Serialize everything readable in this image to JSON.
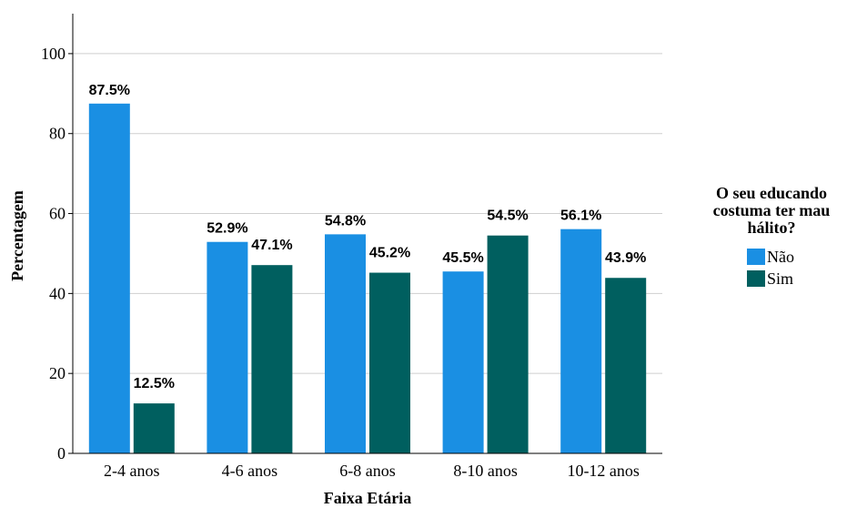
{
  "chart_data": {
    "type": "bar",
    "categories": [
      "2-4 anos",
      "4-6 anos",
      "6-8 anos",
      "8-10 anos",
      "10-12 anos"
    ],
    "series": [
      {
        "name": "Não",
        "values": [
          87.5,
          52.9,
          54.8,
          45.5,
          56.1
        ],
        "labels": [
          "87.5%",
          "52.9%",
          "54.8%",
          "45.5%",
          "56.1%"
        ],
        "color": "#1a8fe3"
      },
      {
        "name": "Sim",
        "values": [
          12.5,
          47.1,
          45.2,
          54.5,
          43.9
        ],
        "labels": [
          "12.5%",
          "47.1%",
          "45.2%",
          "54.5%",
          "43.9%"
        ],
        "color": "#005f5f"
      }
    ],
    "xlabel": "Faixa Etária",
    "ylabel": "Percentagem",
    "ylim": [
      0,
      110
    ],
    "yticks": [
      0,
      20,
      40,
      60,
      80,
      100
    ],
    "grid": true,
    "legend": {
      "title_lines": [
        "O seu educando",
        "costuma ter mau",
        "hálito?"
      ],
      "placement": "right"
    }
  }
}
